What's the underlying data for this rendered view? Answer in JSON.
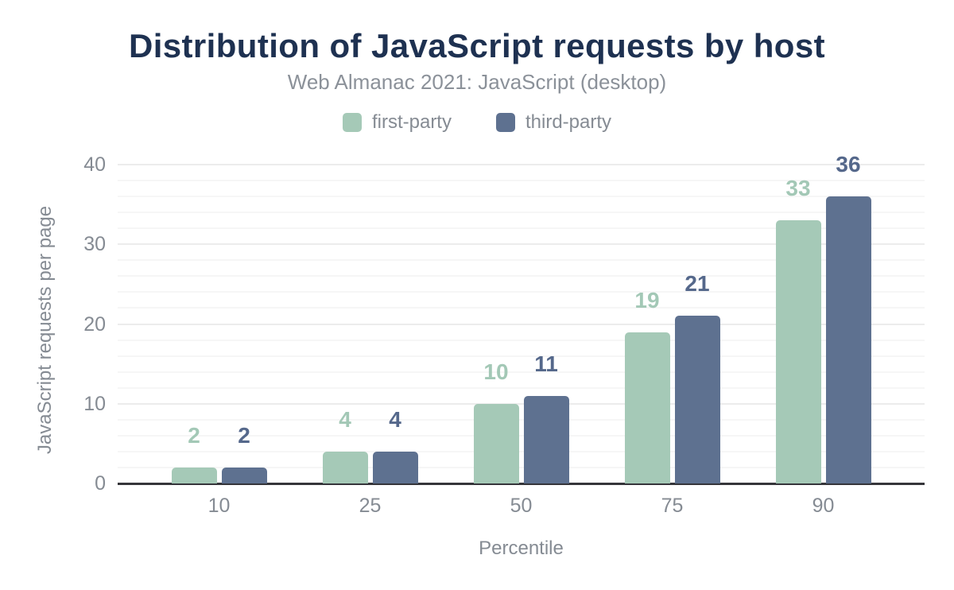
{
  "chart_data": {
    "type": "bar",
    "title": "Distribution of JavaScript requests by host",
    "subtitle": "Web Almanac 2021: JavaScript (desktop)",
    "xlabel": "Percentile",
    "ylabel": "JavaScript requests per page",
    "categories": [
      "10",
      "25",
      "50",
      "75",
      "90"
    ],
    "series": [
      {
        "name": "first-party",
        "color": "#a5c9b7",
        "label_color": "#a3c8b6",
        "values": [
          2,
          4,
          10,
          19,
          33
        ]
      },
      {
        "name": "third-party",
        "color": "#5e7190",
        "label_color": "#55688b",
        "values": [
          2,
          4,
          11,
          21,
          36
        ]
      }
    ],
    "ylim": [
      0,
      40
    ],
    "yticks": [
      0,
      10,
      20,
      30,
      40
    ],
    "minor_grid_step": 2,
    "grid": true,
    "legend_position": "top",
    "colors": {
      "background": "#ffffff",
      "title": "#1e3151",
      "subtitle": "#8b9199",
      "axis_text": "#858b93",
      "axis_line": "#35353a",
      "grid_major": "#ececec",
      "grid_minor": "#f6f6f6"
    }
  }
}
